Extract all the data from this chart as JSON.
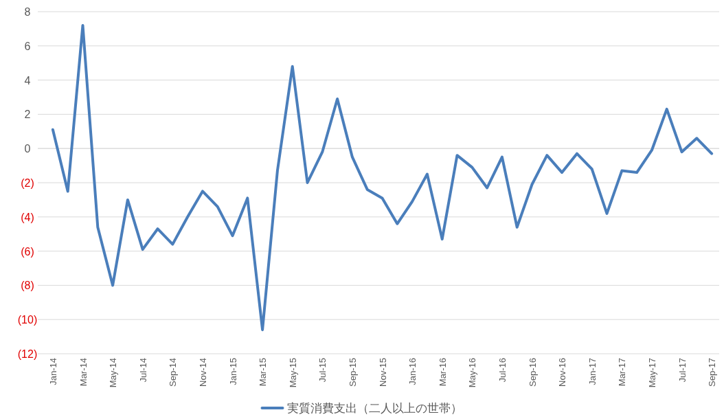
{
  "chart_data": {
    "type": "line",
    "categories": [
      "Jan-14",
      null,
      "Mar-14",
      null,
      "May-14",
      null,
      "Jul-14",
      null,
      "Sep-14",
      null,
      "Nov-14",
      null,
      "Jan-15",
      null,
      "Mar-15",
      null,
      "May-15",
      null,
      "Jul-15",
      null,
      "Sep-15",
      null,
      "Nov-15",
      null,
      "Jan-16",
      null,
      "Mar-16",
      null,
      "May-16",
      null,
      "Jul-16",
      null,
      "Sep-16",
      null,
      "Nov-16",
      null,
      "Jan-17",
      null,
      "Mar-17",
      null,
      "May-17",
      null,
      "Jul-17",
      null,
      "Sep-17"
    ],
    "series": [
      {
        "name": "実質消費支出（二人以上の世帯）",
        "color": "#4a7ebb",
        "values": [
          1.1,
          -2.5,
          7.2,
          -4.6,
          -8.0,
          -3.0,
          -5.9,
          -4.7,
          -5.6,
          -4.0,
          -2.5,
          -3.4,
          -5.1,
          -2.9,
          -10.6,
          -1.3,
          4.8,
          -2.0,
          -0.2,
          2.9,
          -0.5,
          -2.4,
          -2.9,
          -4.4,
          -3.1,
          -1.5,
          -5.3,
          -0.4,
          -1.1,
          -2.3,
          -0.5,
          -4.6,
          -2.1,
          -0.4,
          -1.4,
          -0.3,
          -1.2,
          -3.8,
          -1.3,
          -1.4,
          -0.1,
          2.3,
          -0.2,
          0.6,
          -0.3
        ]
      }
    ],
    "ylim": [
      -12,
      8
    ],
    "yticks": [
      {
        "value": -12,
        "label": "(12)"
      },
      {
        "value": -10,
        "label": "(10)"
      },
      {
        "value": -8,
        "label": "(8)"
      },
      {
        "value": -6,
        "label": "(6)"
      },
      {
        "value": -4,
        "label": "(4)"
      },
      {
        "value": -2,
        "label": "(2)"
      },
      0,
      2,
      4,
      6,
      8
    ],
    "grid": "y",
    "legend": "bottom",
    "marker": "none",
    "line_style": "solid"
  }
}
